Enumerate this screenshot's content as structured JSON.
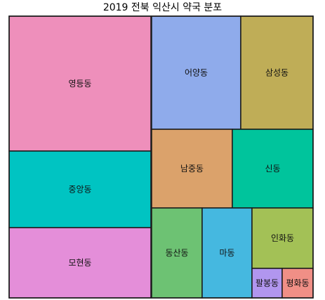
{
  "chart_data": {
    "type": "treemap",
    "title": "2019 전북 익산시 약국 분포",
    "tiles": [
      {
        "name": "영등동",
        "color": "#ee8fbb"
      },
      {
        "name": "어양동",
        "color": "#8fabeb"
      },
      {
        "name": "삼성동",
        "color": "#bfad57"
      },
      {
        "name": "남중동",
        "color": "#dba26b"
      },
      {
        "name": "신동",
        "color": "#00c49c"
      },
      {
        "name": "중앙동",
        "color": "#00c4c2"
      },
      {
        "name": "모현동",
        "color": "#e48ed9"
      },
      {
        "name": "동산동",
        "color": "#6dc273"
      },
      {
        "name": "마동",
        "color": "#45b8e0"
      },
      {
        "name": "인화동",
        "color": "#a3c156"
      },
      {
        "name": "팔봉동",
        "color": "#b196ef"
      },
      {
        "name": "평화동",
        "color": "#f08f86"
      }
    ]
  }
}
